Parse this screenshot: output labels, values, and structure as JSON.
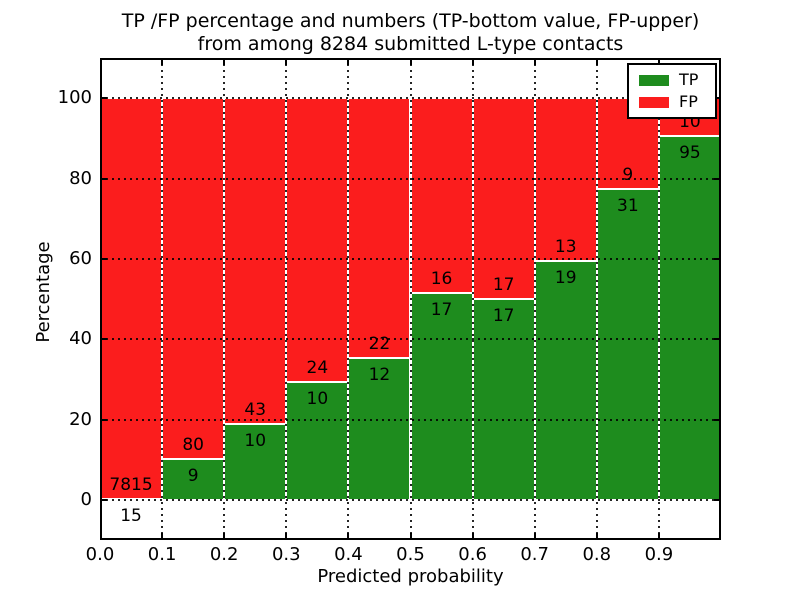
{
  "chart_data": {
    "type": "bar",
    "variant": "stacked-percentage-histogram",
    "title": "TP /FP percentage and numbers (TP-bottom value, FP-upper)\nfrom among 8284 submitted L-type contacts",
    "title_line1": "TP /FP percentage and numbers (TP-bottom value, FP-upper)",
    "title_line2": "from among 8284 submitted L-type contacts",
    "xlabel": "Predicted probability",
    "ylabel": "Percentage",
    "xlim": [
      0.0,
      1.0
    ],
    "ylim": [
      -10,
      110
    ],
    "bin_edges": [
      0.0,
      0.1,
      0.2,
      0.3,
      0.4,
      0.5,
      0.6,
      0.7,
      0.8,
      0.9,
      1.0
    ],
    "xticks": [
      "0.0",
      "0.1",
      "0.2",
      "0.3",
      "0.4",
      "0.5",
      "0.6",
      "0.7",
      "0.8",
      "0.9"
    ],
    "yticks": [
      0,
      20,
      40,
      60,
      80,
      100
    ],
    "grid": true,
    "grid_style": "dotted",
    "bars_normalized_to": 100,
    "categories": [
      "0.0-0.1",
      "0.1-0.2",
      "0.2-0.3",
      "0.3-0.4",
      "0.4-0.5",
      "0.5-0.6",
      "0.6-0.7",
      "0.7-0.8",
      "0.8-0.9",
      "0.9-1.0"
    ],
    "series": [
      {
        "name": "TP",
        "counts": [
          15,
          9,
          10,
          10,
          12,
          17,
          17,
          19,
          31,
          95
        ]
      },
      {
        "name": "FP",
        "counts": [
          7815,
          80,
          43,
          24,
          22,
          16,
          17,
          13,
          9,
          10
        ]
      }
    ],
    "legend": {
      "position": "upper-right",
      "entries": [
        {
          "label": "TP",
          "color": "#1e8c1e"
        },
        {
          "label": "FP",
          "color": "#fb1d1d"
        }
      ]
    }
  },
  "colors": {
    "tp": "#1e8c1e",
    "fp": "#fb1d1d",
    "background": "#ffffff",
    "axes": "#000000"
  }
}
